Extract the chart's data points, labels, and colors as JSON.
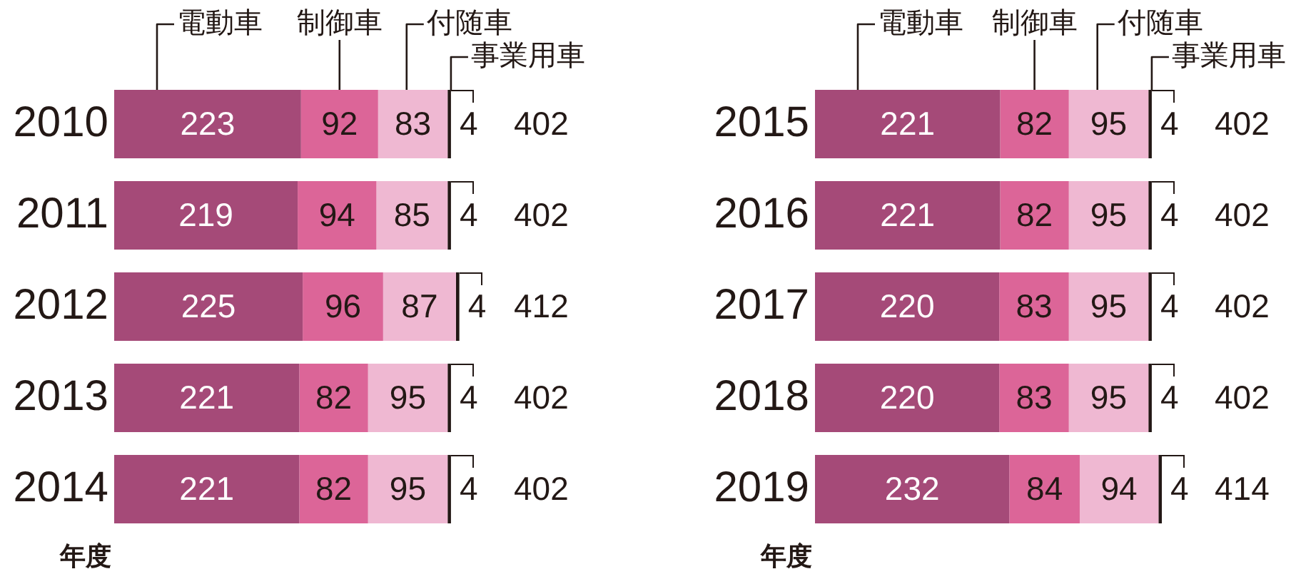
{
  "chart_data": [
    {
      "type": "bar",
      "orientation": "horizontal",
      "stacked": true,
      "ylabel": "年度",
      "categories": [
        "2010",
        "2011",
        "2012",
        "2013",
        "2014"
      ],
      "series": [
        {
          "name": "電動車",
          "color": "#a54a78",
          "values": [
            223,
            219,
            225,
            221,
            221
          ]
        },
        {
          "name": "制御車",
          "color": "#dc6598",
          "values": [
            92,
            94,
            96,
            82,
            82
          ]
        },
        {
          "name": "付随車",
          "color": "#efb8d2",
          "values": [
            83,
            85,
            87,
            95,
            95
          ]
        },
        {
          "name": "事業用車",
          "color": "#231815",
          "values": [
            4,
            4,
            4,
            4,
            4
          ]
        }
      ],
      "data_labels": true,
      "totals": [
        "402",
        "402",
        "412",
        "402",
        "402"
      ],
      "tick_labels": "y"
    },
    {
      "type": "bar",
      "orientation": "horizontal",
      "stacked": true,
      "ylabel": "年度",
      "categories": [
        "2015",
        "2016",
        "2017",
        "2018",
        "2019"
      ],
      "series": [
        {
          "name": "電動車",
          "color": "#a54a78",
          "values": [
            221,
            221,
            220,
            220,
            232
          ]
        },
        {
          "name": "制御車",
          "color": "#dc6598",
          "values": [
            82,
            82,
            83,
            83,
            84
          ]
        },
        {
          "name": "付随車",
          "color": "#efb8d2",
          "values": [
            95,
            95,
            95,
            95,
            94
          ]
        },
        {
          "name": "事業用車",
          "color": "#231815",
          "values": [
            4,
            4,
            4,
            4,
            4
          ]
        }
      ],
      "data_labels": true,
      "totals": [
        "402",
        "402",
        "402",
        "402",
        "414"
      ],
      "tick_labels": "y"
    }
  ]
}
